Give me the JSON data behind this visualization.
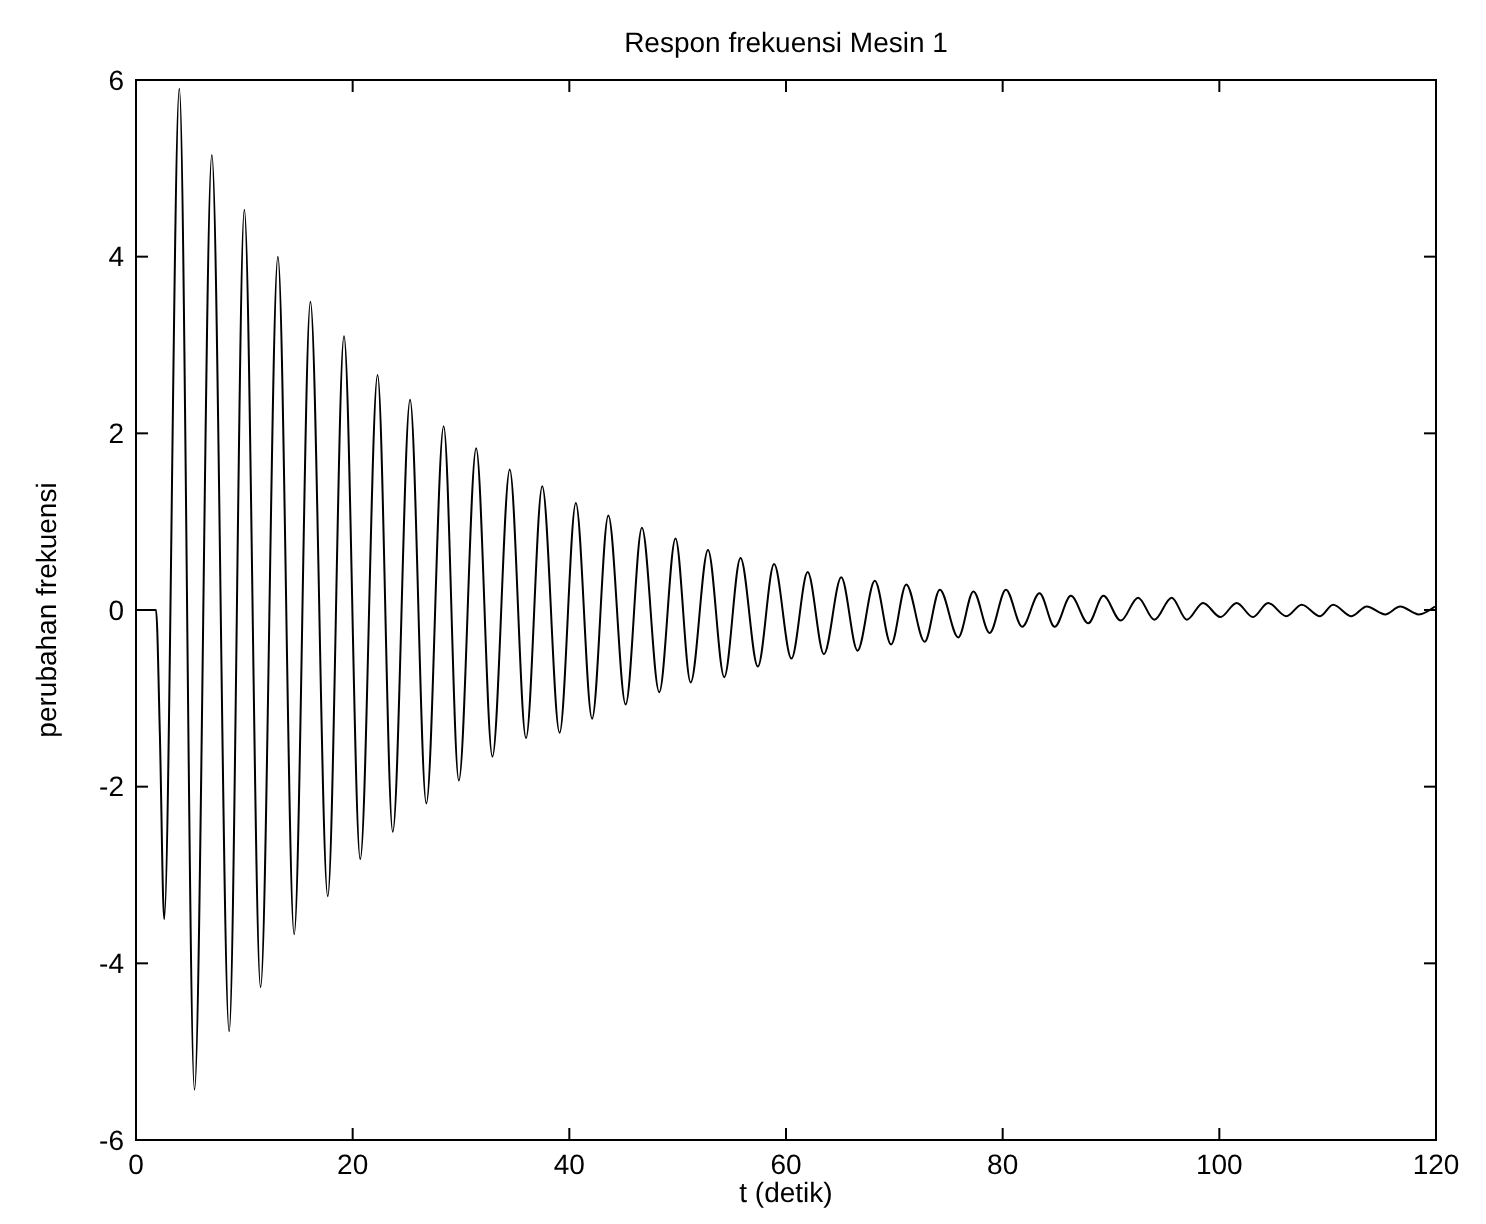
{
  "chart_data": {
    "type": "line",
    "title": "Respon frekuensi Mesin 1",
    "xlabel": "t (detik)",
    "ylabel": "perubahan frekuensi",
    "xlim": [
      0,
      120
    ],
    "ylim": [
      -6,
      6
    ],
    "xticks": [
      0,
      20,
      40,
      60,
      80,
      100,
      120
    ],
    "yticks": [
      -6,
      -4,
      -2,
      0,
      2,
      4,
      6
    ],
    "grid": false,
    "series": [
      {
        "color": "#000000",
        "x": [
          0,
          1.85,
          2.2,
          2.6,
          4.0,
          5.4,
          7.0,
          8.6,
          10.0,
          11.5,
          13.1,
          14.6,
          16.1,
          17.7,
          19.2,
          20.7,
          22.3,
          23.7,
          25.3,
          26.8,
          28.4,
          29.8,
          31.4,
          32.9,
          34.5,
          36.0,
          37.5,
          39.1,
          40.6,
          42.1,
          43.6,
          45.2,
          46.7,
          48.3,
          49.8,
          51.2,
          52.8,
          54.3,
          55.8,
          57.4,
          58.9,
          60.5,
          62.0,
          63.5,
          65.1,
          66.6,
          68.2,
          69.7,
          71.1,
          72.8,
          74.2,
          75.9,
          77.3,
          78.8,
          80.3,
          81.8,
          83.4,
          84.8,
          86.3,
          87.9,
          89.3,
          90.9,
          92.5,
          94.0,
          95.6,
          97.0,
          98.5,
          100.1,
          101.6,
          103.1,
          104.5,
          106.2,
          107.6,
          109.3,
          110.5,
          112.2,
          113.6,
          115.3,
          116.7,
          118.4,
          119.9
        ],
        "values": [
          0,
          0,
          -1.39,
          -3.5,
          5.9,
          -5.43,
          5.15,
          -4.77,
          4.53,
          -4.27,
          4.0,
          -3.67,
          3.49,
          -3.24,
          3.1,
          -2.82,
          2.66,
          -2.51,
          2.38,
          -2.19,
          2.08,
          -1.93,
          1.83,
          -1.66,
          1.59,
          -1.45,
          1.4,
          -1.39,
          1.21,
          -1.23,
          1.07,
          -1.07,
          0.93,
          -0.93,
          0.81,
          -0.82,
          0.68,
          -0.76,
          0.59,
          -0.64,
          0.52,
          -0.55,
          0.43,
          -0.5,
          0.37,
          -0.46,
          0.33,
          -0.39,
          0.29,
          -0.36,
          0.23,
          -0.31,
          0.21,
          -0.26,
          0.23,
          -0.19,
          0.19,
          -0.19,
          0.16,
          -0.15,
          0.16,
          -0.12,
          0.14,
          -0.11,
          0.14,
          -0.11,
          0.08,
          -0.08,
          0.08,
          -0.08,
          0.08,
          -0.07,
          0.06,
          -0.07,
          0.06,
          -0.07,
          0.04,
          -0.05,
          0.04,
          -0.05,
          0.04
        ]
      }
    ]
  }
}
